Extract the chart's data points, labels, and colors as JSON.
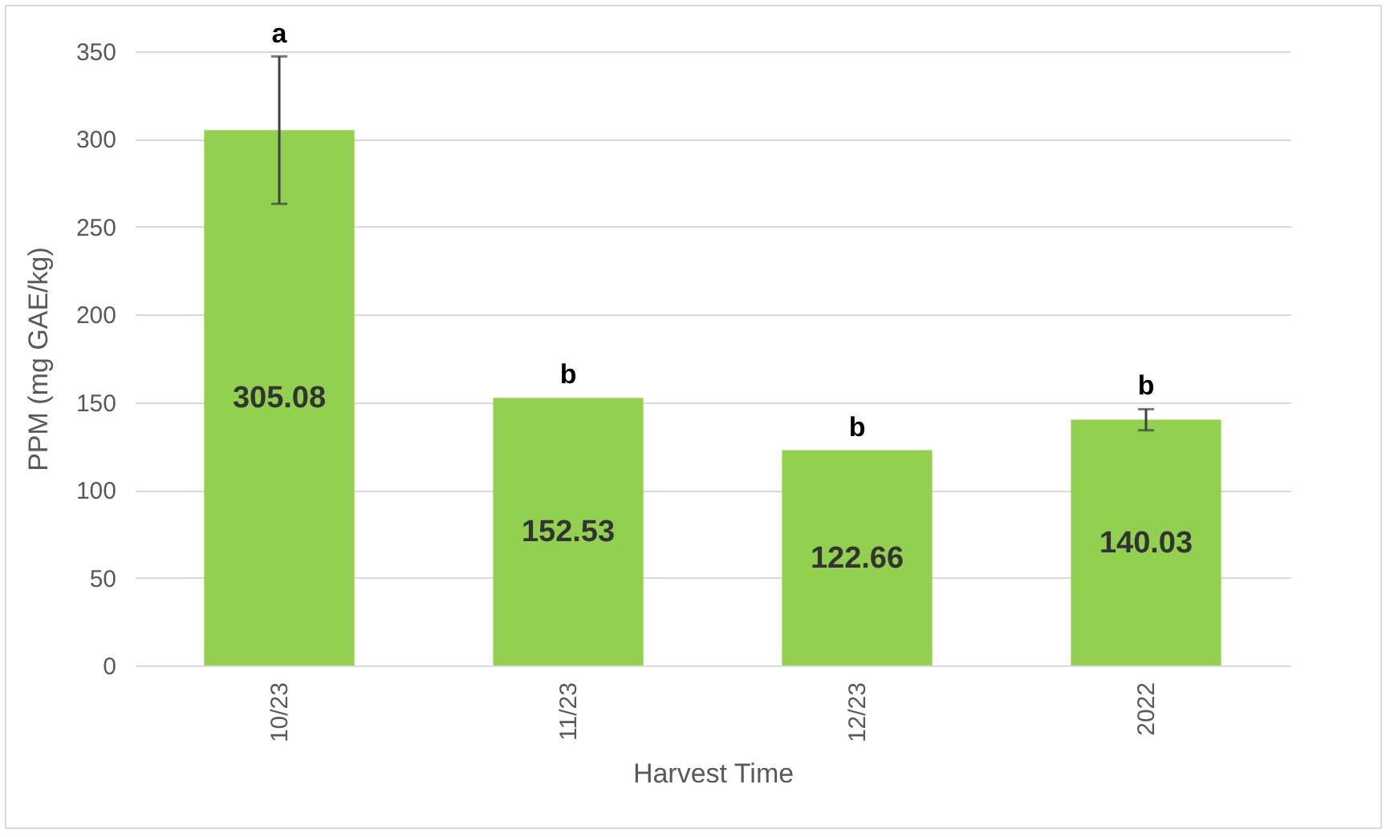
{
  "chart_data": {
    "type": "bar",
    "xlabel": "Harvest Time",
    "ylabel": "PPM (mg GAE/kg)",
    "categories": [
      "10/23",
      "11/23",
      "12/23",
      "2022"
    ],
    "values": [
      305.08,
      152.53,
      122.66,
      140.03
    ],
    "errors": [
      42,
      null,
      null,
      6
    ],
    "color": "#92d050",
    "data_labels": true,
    "ylim": [
      0,
      350
    ],
    "yticks": [
      0,
      50,
      100,
      150,
      200,
      250,
      300,
      350
    ],
    "grid": "y",
    "annotations": [
      {
        "text": "a",
        "x": "10/23",
        "y": 347
      },
      {
        "text": "b",
        "x": "11/23",
        "y": 152.53
      },
      {
        "text": "b",
        "x": "12/23",
        "y": 122.66
      },
      {
        "text": "b",
        "x": "2022",
        "y": 146
      }
    ]
  }
}
